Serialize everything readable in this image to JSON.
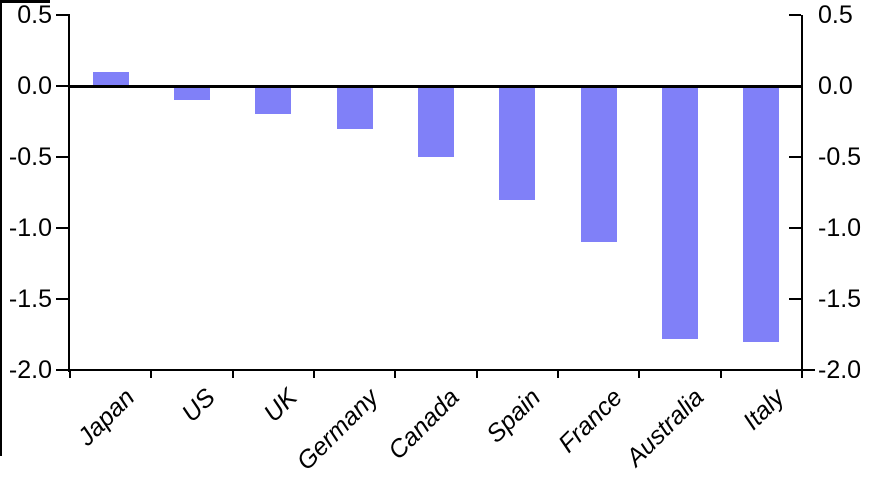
{
  "chart_data": {
    "type": "bar",
    "title": "",
    "xlabel": "",
    "ylabel": "",
    "categories": [
      "Japan",
      "US",
      "UK",
      "Germany",
      "Canada",
      "Spain",
      "France",
      "Australia",
      "Italy"
    ],
    "values": [
      0.1,
      -0.1,
      -0.2,
      -0.3,
      -0.5,
      -0.8,
      -1.1,
      -1.78,
      -1.8
    ],
    "ylim": [
      -2.0,
      0.5
    ],
    "yticks": [
      0.5,
      0.0,
      -0.5,
      -1.0,
      -1.5,
      -2.0
    ],
    "ytick_labels_left": [
      "0.5",
      "0.0",
      "-0.5",
      "-1.0",
      "-1.5",
      "-2.0"
    ],
    "ytick_labels_right": [
      "0.5",
      "0.0",
      "-0.5",
      "-1.0",
      "-1.5",
      "-2.0"
    ],
    "dual_y_axis": true,
    "grid": false,
    "legend": "none",
    "zero_baseline": true,
    "bar_color": "#8080f8",
    "axis_color": "#000000",
    "background_color": "#ffffff"
  }
}
